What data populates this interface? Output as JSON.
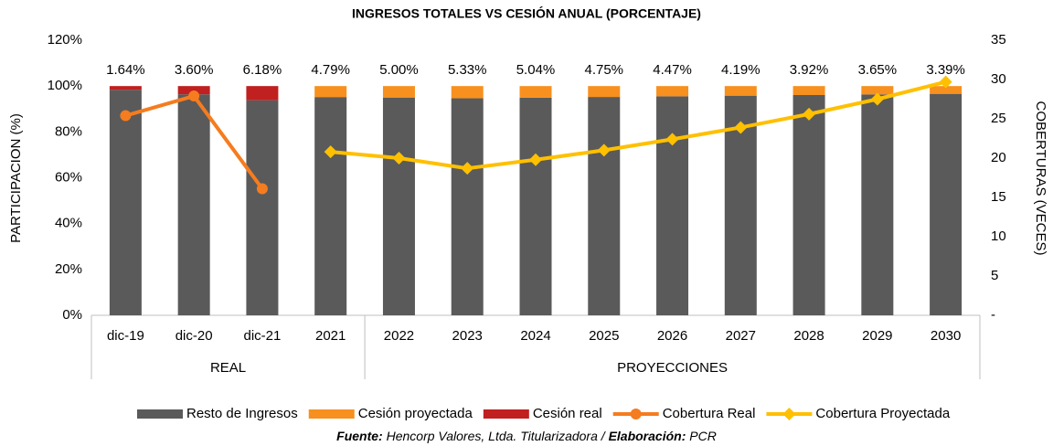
{
  "chart_data": {
    "type": "bar",
    "title": "INGRESOS TOTALES VS CESIÓN ANUAL (PORCENTAJE)",
    "y_label": "PARTICIPACION (%)",
    "y2_label": "COBERTURAS (VECES)",
    "categories": [
      "dic-19",
      "dic-20",
      "dic-21",
      "2021",
      "2022",
      "2023",
      "2024",
      "2025",
      "2026",
      "2027",
      "2028",
      "2029",
      "2030"
    ],
    "groups": [
      {
        "label": "REAL",
        "count": 4
      },
      {
        "label": "PROYECCIONES",
        "count": 9
      }
    ],
    "series": [
      {
        "name": "Resto de Ingresos",
        "type": "bar",
        "color": "#5a5a5a",
        "values": [
          98.36,
          96.4,
          93.82,
          95.21,
          95.0,
          94.67,
          94.96,
          95.25,
          95.53,
          95.81,
          96.08,
          96.35,
          96.61
        ]
      },
      {
        "name": "Cesión proyectada",
        "type": "bar",
        "color": "#f7901e",
        "values": [
          null,
          null,
          null,
          4.79,
          5.0,
          5.33,
          5.04,
          4.75,
          4.47,
          4.19,
          3.92,
          3.65,
          3.39
        ],
        "value_labels": [
          null,
          null,
          null,
          "4.79%",
          "5.00%",
          "5.33%",
          "5.04%",
          "4.75%",
          "4.47%",
          "4.19%",
          "3.92%",
          "3.65%",
          "3.39%"
        ]
      },
      {
        "name": "Cesión real",
        "type": "bar",
        "color": "#c0201f",
        "values": [
          1.64,
          3.6,
          6.18,
          null,
          null,
          null,
          null,
          null,
          null,
          null,
          null,
          null,
          null
        ],
        "value_labels": [
          "1.64%",
          "3.60%",
          "6.18%",
          null,
          null,
          null,
          null,
          null,
          null,
          null,
          null,
          null,
          null
        ]
      },
      {
        "name": "Cobertura Real",
        "type": "line",
        "axis": "y2",
        "marker": "circle",
        "color": "#f57c1f",
        "values": [
          25.4,
          27.9,
          16.1,
          null,
          null,
          null,
          null,
          null,
          null,
          null,
          null,
          null,
          null
        ]
      },
      {
        "name": "Cobertura Proyectada",
        "type": "line",
        "axis": "y2",
        "marker": "diamond",
        "color": "#ffc000",
        "values": [
          null,
          null,
          null,
          20.8,
          20.0,
          18.7,
          19.8,
          21.0,
          22.4,
          23.9,
          25.6,
          27.5,
          29.7
        ]
      }
    ],
    "ylim": [
      0,
      120
    ],
    "yticks": [
      {
        "value": 0,
        "label": "0%"
      },
      {
        "value": 20,
        "label": "20%"
      },
      {
        "value": 40,
        "label": "40%"
      },
      {
        "value": 60,
        "label": "60%"
      },
      {
        "value": 80,
        "label": "80%"
      },
      {
        "value": 100,
        "label": "100%"
      },
      {
        "value": 120,
        "label": "120%"
      }
    ],
    "y2lim": [
      0,
      35
    ],
    "y2ticks": [
      {
        "value": 0,
        "label": "-"
      },
      5,
      10,
      15,
      20,
      25,
      30,
      35
    ],
    "grid": false,
    "legend": "bottom",
    "source": [
      "Fuente:",
      "Hencorp Valores, Ltda. Titularizadora /",
      "Elaboración:",
      "PCR"
    ]
  }
}
